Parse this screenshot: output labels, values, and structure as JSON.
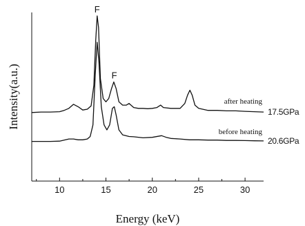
{
  "chart_data": {
    "type": "line",
    "title": "",
    "xlabel": "Energy (keV)",
    "ylabel": "Intensity(a.u.)",
    "xlim": [
      7,
      32
    ],
    "xticks": [
      10,
      15,
      20,
      25,
      30
    ],
    "xtick_labels": [
      "10",
      "15",
      "20",
      "25",
      "30"
    ],
    "y_ticks_labeled": false,
    "grid": false,
    "legend": "none",
    "series": [
      {
        "name": "after heating",
        "pressure_label": "17.5GPa",
        "points": [
          [
            7.0,
            0.415
          ],
          [
            8.0,
            0.418
          ],
          [
            9.0,
            0.418
          ],
          [
            10.0,
            0.42
          ],
          [
            10.5,
            0.428
          ],
          [
            11.0,
            0.44
          ],
          [
            11.5,
            0.465
          ],
          [
            12.0,
            0.45
          ],
          [
            12.5,
            0.43
          ],
          [
            13.0,
            0.435
          ],
          [
            13.4,
            0.455
          ],
          [
            13.7,
            0.58
          ],
          [
            13.9,
            0.85
          ],
          [
            14.05,
            1.0
          ],
          [
            14.2,
            0.93
          ],
          [
            14.4,
            0.62
          ],
          [
            14.7,
            0.5
          ],
          [
            15.0,
            0.48
          ],
          [
            15.3,
            0.5
          ],
          [
            15.6,
            0.56
          ],
          [
            15.85,
            0.6
          ],
          [
            16.1,
            0.56
          ],
          [
            16.4,
            0.48
          ],
          [
            16.8,
            0.46
          ],
          [
            17.2,
            0.46
          ],
          [
            17.5,
            0.47
          ],
          [
            18.0,
            0.445
          ],
          [
            18.5,
            0.44
          ],
          [
            19.0,
            0.44
          ],
          [
            19.5,
            0.438
          ],
          [
            20.0,
            0.44
          ],
          [
            20.5,
            0.445
          ],
          [
            20.9,
            0.46
          ],
          [
            21.2,
            0.445
          ],
          [
            22.0,
            0.44
          ],
          [
            22.5,
            0.44
          ],
          [
            23.0,
            0.44
          ],
          [
            23.5,
            0.47
          ],
          [
            23.8,
            0.52
          ],
          [
            24.05,
            0.55
          ],
          [
            24.3,
            0.52
          ],
          [
            24.6,
            0.46
          ],
          [
            25.0,
            0.44
          ],
          [
            26.0,
            0.428
          ],
          [
            27.0,
            0.428
          ],
          [
            28.0,
            0.425
          ],
          [
            29.0,
            0.425
          ],
          [
            30.0,
            0.422
          ],
          [
            31.0,
            0.42
          ],
          [
            32.0,
            0.418
          ]
        ]
      },
      {
        "name": "before heating",
        "pressure_label": "20.6GPa",
        "points": [
          [
            7.0,
            0.24
          ],
          [
            8.0,
            0.24
          ],
          [
            9.0,
            0.24
          ],
          [
            10.0,
            0.242
          ],
          [
            11.0,
            0.255
          ],
          [
            11.5,
            0.255
          ],
          [
            12.0,
            0.25
          ],
          [
            12.5,
            0.25
          ],
          [
            13.0,
            0.255
          ],
          [
            13.3,
            0.27
          ],
          [
            13.6,
            0.34
          ],
          [
            13.85,
            0.65
          ],
          [
            14.05,
            0.84
          ],
          [
            14.25,
            0.72
          ],
          [
            14.5,
            0.45
          ],
          [
            14.8,
            0.34
          ],
          [
            15.1,
            0.31
          ],
          [
            15.4,
            0.34
          ],
          [
            15.7,
            0.44
          ],
          [
            15.9,
            0.45
          ],
          [
            16.1,
            0.4
          ],
          [
            16.4,
            0.31
          ],
          [
            16.8,
            0.28
          ],
          [
            17.5,
            0.27
          ],
          [
            18.0,
            0.268
          ],
          [
            19.0,
            0.262
          ],
          [
            20.0,
            0.265
          ],
          [
            21.0,
            0.275
          ],
          [
            21.5,
            0.265
          ],
          [
            22.0,
            0.258
          ],
          [
            23.0,
            0.255
          ],
          [
            24.0,
            0.25
          ],
          [
            25.0,
            0.25
          ],
          [
            26.0,
            0.248
          ],
          [
            27.0,
            0.248
          ],
          [
            28.0,
            0.246
          ],
          [
            29.0,
            0.246
          ],
          [
            30.0,
            0.245
          ],
          [
            31.0,
            0.244
          ],
          [
            32.0,
            0.243
          ]
        ]
      }
    ],
    "annotations": [
      {
        "text": "F",
        "x": 14.05
      },
      {
        "text": "F",
        "x": 15.9
      }
    ]
  }
}
